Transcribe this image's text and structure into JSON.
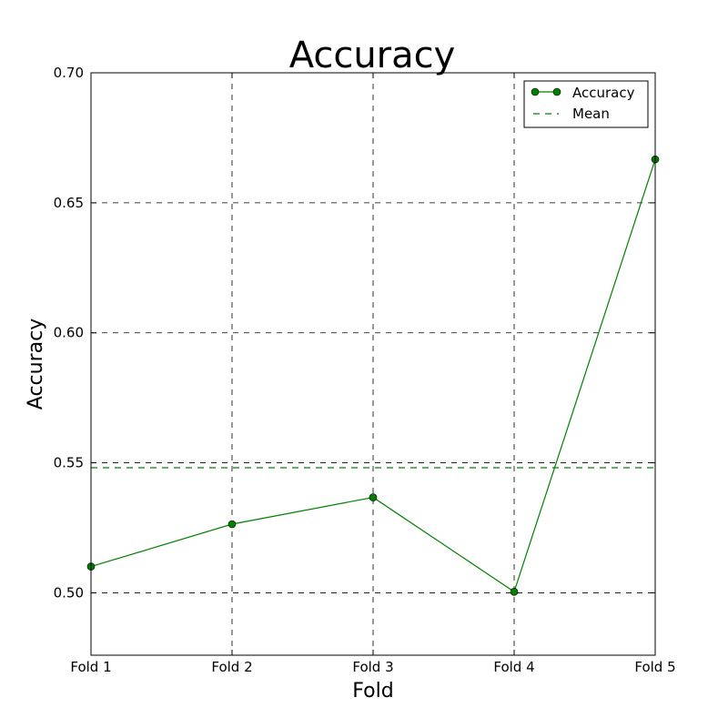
{
  "chart_data": {
    "type": "line",
    "title": "Accuracy",
    "xlabel": "Fold",
    "ylabel": "Accuracy",
    "categories": [
      "Fold 1",
      "Fold 2",
      "Fold 3",
      "Fold 4",
      "Fold 5"
    ],
    "series": [
      {
        "name": "Accuracy",
        "values": [
          0.5101,
          0.5264,
          0.5367,
          0.5004,
          0.6667
        ],
        "color": "#008000",
        "marker": "circle",
        "line": "solid"
      }
    ],
    "mean": {
      "name": "Mean",
      "value": 0.5481,
      "color": "#008000",
      "line": "dashed"
    },
    "ylim": [
      0.476,
      0.7
    ],
    "yticks": [
      0.5,
      0.55,
      0.6,
      0.65,
      0.7
    ],
    "ytick_labels": [
      "0.50",
      "0.55",
      "0.60",
      "0.65",
      "0.70"
    ],
    "grid": true,
    "legend_position": "top-right"
  }
}
